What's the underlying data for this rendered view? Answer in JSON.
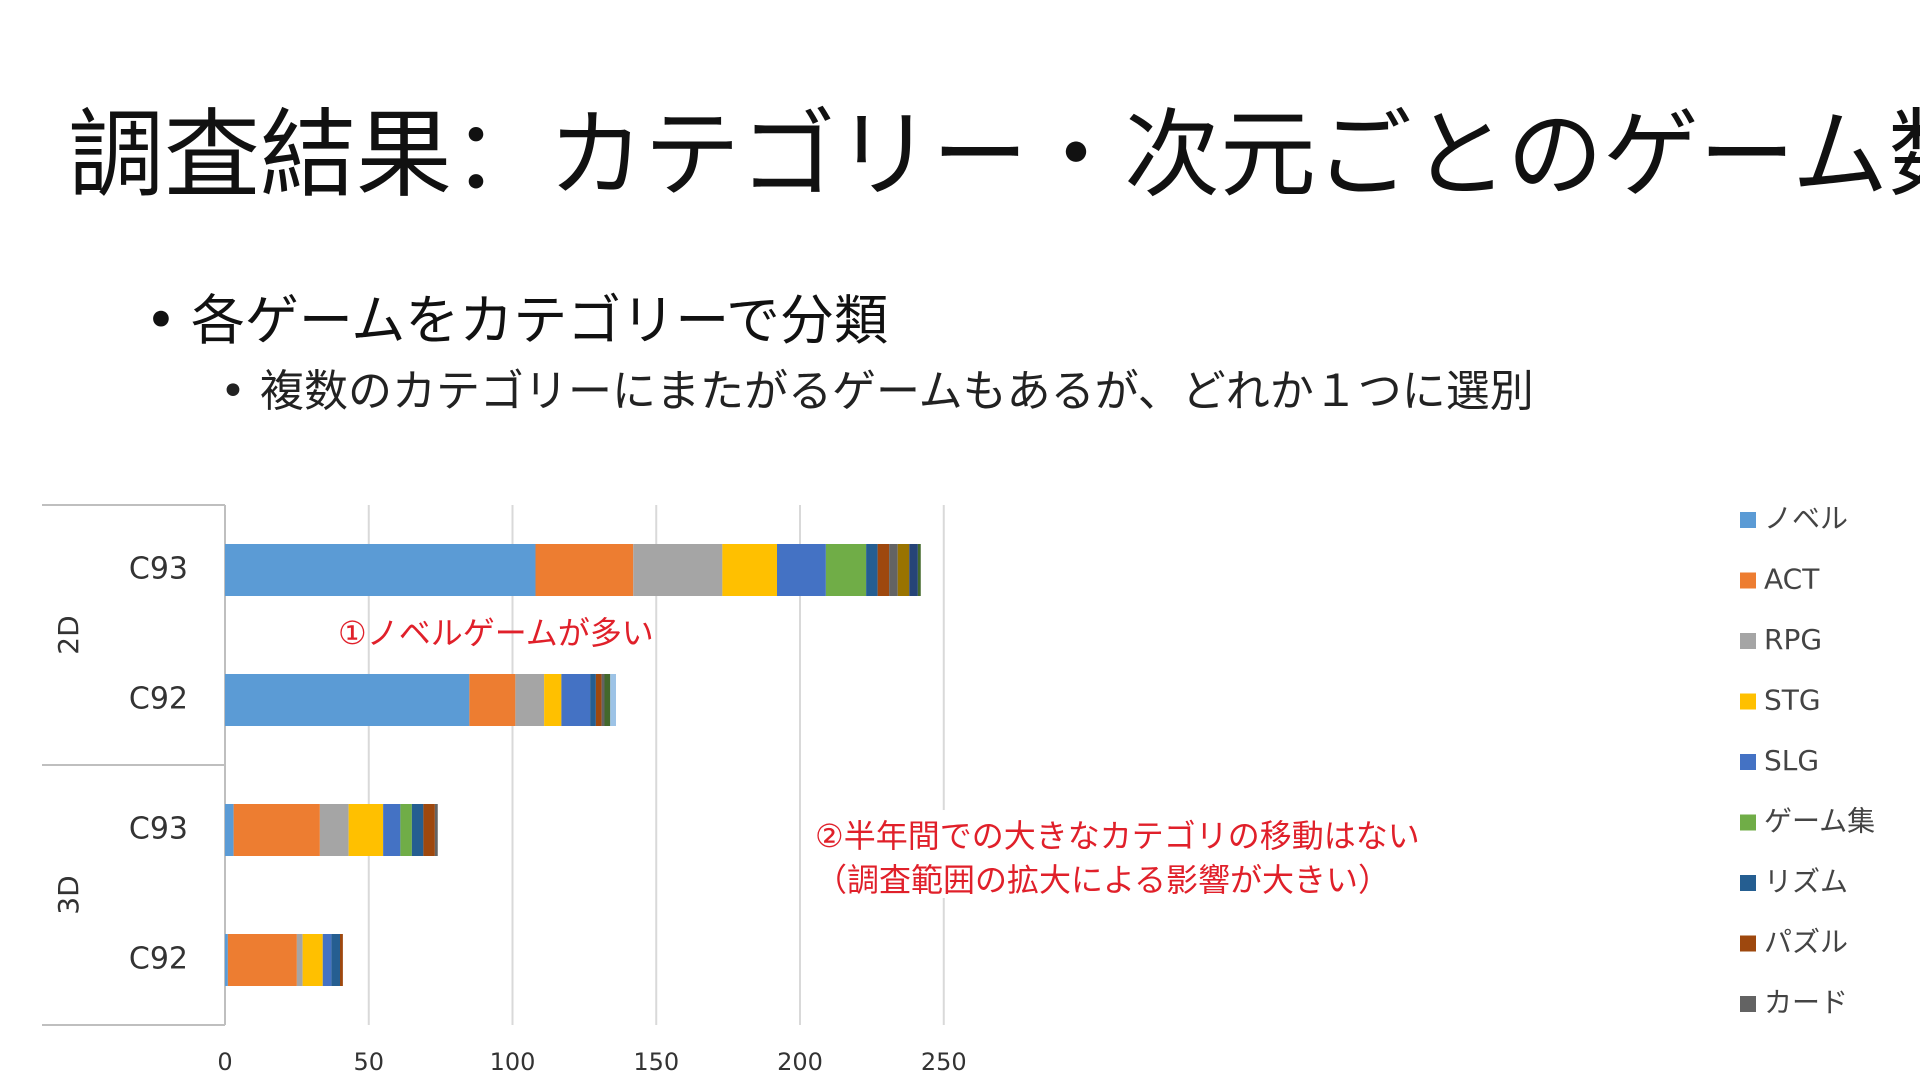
{
  "slide": {
    "title": "調査結果：カテゴリー・次元ごとのゲーム数",
    "bullet1": "各ゲームをカテゴリーで分類",
    "bullet2": "複数のカテゴリーにまたがるゲームもあるが、どれか１つに選別"
  },
  "chart_data": {
    "type": "bar",
    "orientation": "horizontal",
    "stacked": true,
    "groups": [
      {
        "label": "2D",
        "rows": [
          "C93",
          "C92"
        ]
      },
      {
        "label": "3D",
        "rows": [
          "C93",
          "C92"
        ]
      }
    ],
    "rows": [
      {
        "group": "2D",
        "label": "C93"
      },
      {
        "group": "2D",
        "label": "C92"
      },
      {
        "group": "3D",
        "label": "C93"
      },
      {
        "group": "3D",
        "label": "C92"
      }
    ],
    "series": [
      {
        "name": "ノベル",
        "color": "#5b9bd5",
        "values": [
          108,
          85,
          3,
          1
        ]
      },
      {
        "name": "ACT",
        "color": "#ed7d31",
        "values": [
          34,
          16,
          30,
          24
        ]
      },
      {
        "name": "RPG",
        "color": "#a5a5a5",
        "values": [
          31,
          10,
          10,
          2
        ]
      },
      {
        "name": "STG",
        "color": "#ffc000",
        "values": [
          19,
          6,
          12,
          7
        ]
      },
      {
        "name": "SLG",
        "color": "#4472c4",
        "values": [
          17,
          10,
          6,
          3
        ]
      },
      {
        "name": "ゲーム集",
        "color": "#70ad47",
        "values": [
          14,
          0,
          4,
          0
        ]
      },
      {
        "name": "リズム",
        "color": "#255e91",
        "values": [
          4,
          2,
          4,
          3
        ]
      },
      {
        "name": "パズル",
        "color": "#9e480e",
        "values": [
          4,
          2,
          4,
          1
        ]
      },
      {
        "name": "カード",
        "color": "#636363",
        "values": [
          3,
          1,
          1,
          0
        ]
      },
      {
        "name": "",
        "color": "#997300",
        "values": [
          4,
          0,
          0,
          0
        ]
      },
      {
        "name": "",
        "color": "#264478",
        "values": [
          3,
          0,
          0,
          0
        ]
      },
      {
        "name": "",
        "color": "#43682b",
        "values": [
          1,
          2,
          0,
          0
        ]
      },
      {
        "name": "",
        "color": "#9dc3e6",
        "values": [
          0,
          2,
          0,
          0
        ]
      }
    ],
    "xlim": [
      0,
      250
    ],
    "xticks": [
      0,
      50,
      100,
      150,
      200,
      250
    ],
    "gridlines": true,
    "legend_position": "right",
    "annotations": [
      {
        "text": "①ノベルゲームが多い"
      },
      {
        "text": "②半年間での大きなカテゴリの移動はない"
      },
      {
        "text": "（調査範囲の拡大による影響が大きい）"
      }
    ]
  }
}
